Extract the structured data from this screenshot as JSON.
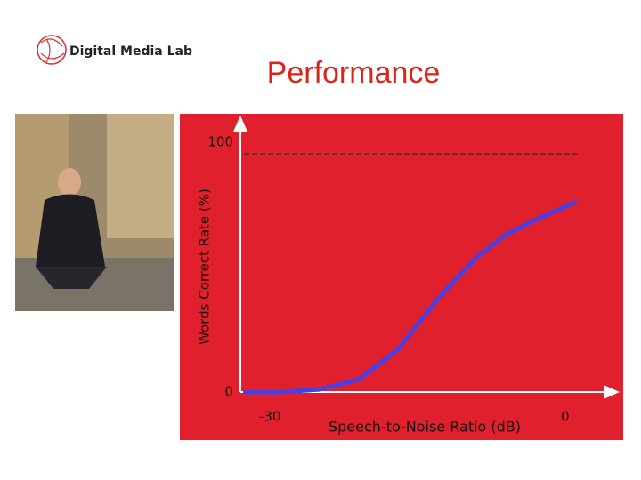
{
  "header": {
    "logo": "Digital Media Lab"
  },
  "chart_data": {
    "type": "line",
    "title": "Performance",
    "x_label": "Speech-to-Noise Ratio (dB)",
    "y_label": "Words Correct Rate (%)",
    "x": [
      -32.5,
      -29,
      -25,
      -21,
      -17,
      -13,
      -9,
      -6,
      -3,
      1
    ],
    "series": [
      {
        "name": null,
        "color": "#4a3fe0",
        "values": [
          0,
          0,
          1,
          5,
          17,
          37,
          54,
          63,
          69,
          76
        ]
      }
    ],
    "xlim": [
      -33,
      5
    ],
    "xticks": [
      -30,
      0
    ],
    "ylim": [
      0,
      110
    ],
    "yticks": [
      0,
      100
    ],
    "grid": true,
    "background": "#e0202c"
  }
}
